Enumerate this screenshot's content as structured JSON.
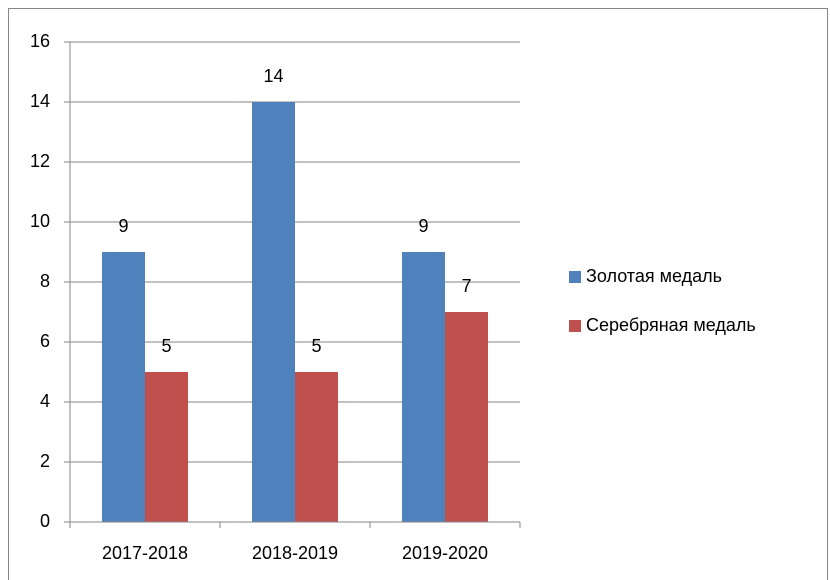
{
  "chart_data": {
    "type": "bar",
    "categories": [
      "2017-2018",
      "2018-2019",
      "2019-2020"
    ],
    "series": [
      {
        "name": "Золотая медаль",
        "color": "#4f81bd",
        "values": [
          9,
          14,
          9
        ]
      },
      {
        "name": "Серебряная медаль",
        "color": "#c0504d",
        "values": [
          5,
          5,
          7
        ]
      }
    ],
    "ylim": [
      0,
      16
    ],
    "yticks": [
      0,
      2,
      4,
      6,
      8,
      10,
      12,
      14,
      16
    ],
    "grid": true,
    "legend": "right"
  }
}
